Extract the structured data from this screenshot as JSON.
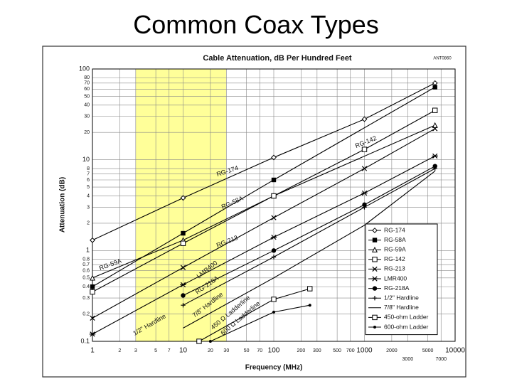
{
  "title": "Common Coax Types",
  "chart_data": {
    "type": "line",
    "title": "Cable Attenuation, dB Per Hundred Feet",
    "code": "ANT0860",
    "x_label": "Frequency (MHz)",
    "y_label": "Attenuation (dB)",
    "xscale": "log",
    "yscale": "log",
    "xlim": [
      1,
      10000
    ],
    "ylim": [
      0.1,
      100
    ],
    "xticks": [
      1,
      2,
      3,
      5,
      7,
      10,
      20,
      30,
      50,
      70,
      100,
      200,
      300,
      500,
      700,
      1000,
      2000,
      3000,
      5000,
      7000,
      10000
    ],
    "yticks": [
      0.1,
      0.2,
      0.3,
      0.4,
      0.5,
      0.6,
      0.7,
      0.8,
      1,
      2,
      3,
      4,
      5,
      6,
      7,
      8,
      10,
      20,
      30,
      40,
      50,
      60,
      70,
      80,
      100
    ],
    "grid": true,
    "highlight": [
      3,
      30
    ],
    "highlight_color": "#ffff99",
    "legend": "lower-right",
    "series": [
      {
        "name": "RG-174",
        "color": "#000",
        "marker": "diamond-open",
        "x": [
          1,
          10,
          100,
          1000,
          6000
        ],
        "values": [
          1.3,
          3.8,
          10.6,
          28,
          70
        ]
      },
      {
        "name": "RG-58A",
        "color": "#000",
        "marker": "square-filled",
        "x": [
          1,
          10,
          100,
          6000
        ],
        "values": [
          0.4,
          1.55,
          6,
          63
        ]
      },
      {
        "name": "RG-59A",
        "color": "#000",
        "marker": "triangle-open",
        "x": [
          1,
          10,
          100,
          6000
        ],
        "values": [
          0.5,
          1.3,
          4,
          24
        ]
      },
      {
        "name": "RG-142",
        "color": "#000",
        "marker": "square-open",
        "x": [
          1,
          10,
          100,
          1000,
          6000
        ],
        "values": [
          0.35,
          1.2,
          4,
          13,
          35
        ]
      },
      {
        "name": "RG-213",
        "color": "#000",
        "marker": "x",
        "x": [
          1,
          10,
          100,
          1000,
          6000
        ],
        "values": [
          0.18,
          0.65,
          2.3,
          8,
          22
        ]
      },
      {
        "name": "LMR400",
        "color": "#000",
        "marker": "asterisk",
        "x": [
          1,
          10,
          100,
          1000,
          6000
        ],
        "values": [
          0.12,
          0.42,
          1.4,
          4.3,
          11
        ]
      },
      {
        "name": "RG-218A",
        "color": "#000",
        "marker": "circle-filled",
        "x": [
          10,
          100,
          1000,
          6000
        ],
        "values": [
          0.32,
          1,
          3.2,
          8.5
        ]
      },
      {
        "name": "1/2\" Hardline",
        "color": "#000",
        "marker": "plus",
        "x": [
          10,
          100,
          1000,
          6000
        ],
        "values": [
          0.25,
          0.85,
          3,
          8
        ]
      },
      {
        "name": "7/8\" Hardline",
        "color": "#000",
        "marker": "none",
        "x": [
          10,
          100,
          1000,
          6000
        ],
        "values": [
          0.14,
          0.5,
          1.9,
          7.5
        ]
      },
      {
        "name": "450-ohm Ladder",
        "line_label": "450 Ω Ladderline",
        "color": "#000",
        "marker": "square-open",
        "x": [
          15,
          100,
          250
        ],
        "values": [
          0.1,
          0.29,
          0.38
        ]
      },
      {
        "name": "600-ohm Ladder",
        "line_label": "600 Ω Ladderline",
        "color": "#000",
        "marker": "dot",
        "x": [
          20,
          100,
          250
        ],
        "values": [
          0.1,
          0.21,
          0.25
        ]
      }
    ]
  }
}
